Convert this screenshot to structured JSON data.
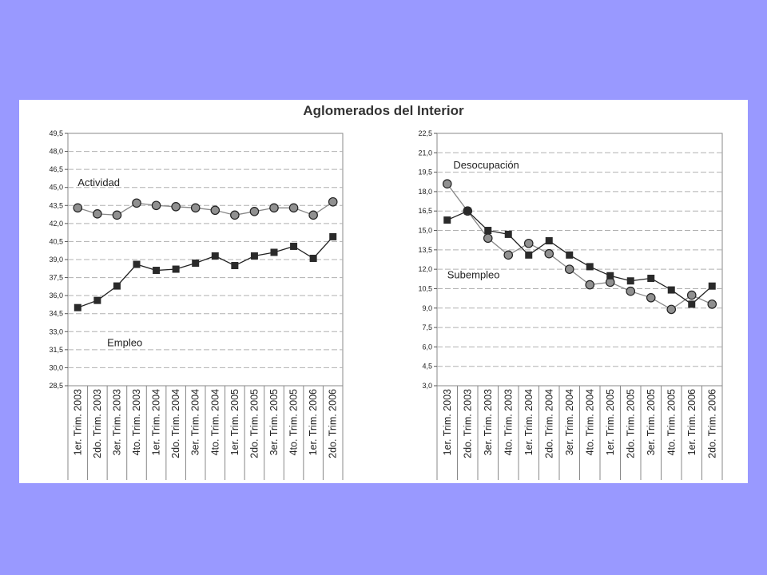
{
  "figure_title": "Aglomerados del Interior",
  "chart_data": [
    {
      "type": "line",
      "title": "",
      "xlabel": "",
      "ylabel": "",
      "ylim": [
        28.5,
        49.5
      ],
      "yticks": [
        "28,5",
        "30,0",
        "31,5",
        "33,0",
        "34,5",
        "36,0",
        "37,5",
        "39,0",
        "40,5",
        "42,0",
        "43,5",
        "45,0",
        "46,5",
        "48,0",
        "49,5"
      ],
      "grid": true,
      "categories": [
        "1er. Trim. 2003",
        "2do. Trim. 2003",
        "3er. Trim. 2003",
        "4to. Trim. 2003",
        "1er. Trim. 2004",
        "2do. Trim. 2004",
        "3er. Trim. 2004",
        "4to. Trim. 2004",
        "1er. Trim. 2005",
        "2do. Trim. 2005",
        "3er. Trim. 2005",
        "4to. Trim. 2005",
        "1er. Trim. 2006",
        "2do. Trim. 2006"
      ],
      "series": [
        {
          "name": "Actividad",
          "marker": "circle",
          "color": "#888888",
          "values": [
            43.3,
            42.8,
            42.7,
            43.7,
            43.5,
            43.4,
            43.3,
            43.1,
            42.7,
            43.0,
            43.3,
            43.3,
            42.7,
            43.8
          ]
        },
        {
          "name": "Empleo",
          "marker": "square",
          "color": "#222222",
          "values": [
            35.0,
            35.6,
            36.8,
            38.6,
            38.1,
            38.2,
            38.7,
            39.3,
            38.5,
            39.3,
            39.6,
            40.1,
            39.1,
            40.9
          ]
        }
      ],
      "annotations": [
        {
          "text": "Actividad",
          "x": 0.5,
          "y": 45.1
        },
        {
          "text": "Empleo",
          "x": 2.0,
          "y": 31.8
        }
      ]
    },
    {
      "type": "line",
      "title": "",
      "xlabel": "",
      "ylabel": "",
      "ylim": [
        3.0,
        22.5
      ],
      "yticks": [
        "3,0",
        "4,5",
        "6,0",
        "7,5",
        "9,0",
        "10,5",
        "12,0",
        "13,5",
        "15,0",
        "16,5",
        "18,0",
        "19,5",
        "21,0",
        "22,5"
      ],
      "grid": true,
      "categories": [
        "1er. Trim. 2003",
        "2do. Trim. 2003",
        "3er. Trim. 2003",
        "4to. Trim. 2003",
        "1er. Trim. 2004",
        "2do. Trim. 2004",
        "3er. Trim. 2004",
        "4to. Trim. 2004",
        "1er. Trim. 2005",
        "2do. Trim. 2005",
        "3er. Trim. 2005",
        "4to. Trim. 2005",
        "1er. Trim. 2006",
        "2do. Trim. 2006"
      ],
      "series": [
        {
          "name": "Desocupación",
          "marker": "circle",
          "color": "#888888",
          "values": [
            18.6,
            16.5,
            14.4,
            13.1,
            14.0,
            13.2,
            12.0,
            10.8,
            11.0,
            10.3,
            9.8,
            8.9,
            10.0,
            9.3
          ]
        },
        {
          "name": "Subempleo",
          "marker": "square",
          "color": "#222222",
          "values": [
            15.8,
            16.5,
            15.0,
            14.7,
            13.1,
            14.2,
            13.1,
            12.2,
            11.5,
            11.1,
            11.3,
            10.4,
            9.3,
            10.7
          ]
        }
      ],
      "annotations": [
        {
          "text": "Desocupación",
          "x": 0.8,
          "y": 19.8
        },
        {
          "text": "Subempleo",
          "x": 0.5,
          "y": 11.3
        }
      ]
    }
  ]
}
